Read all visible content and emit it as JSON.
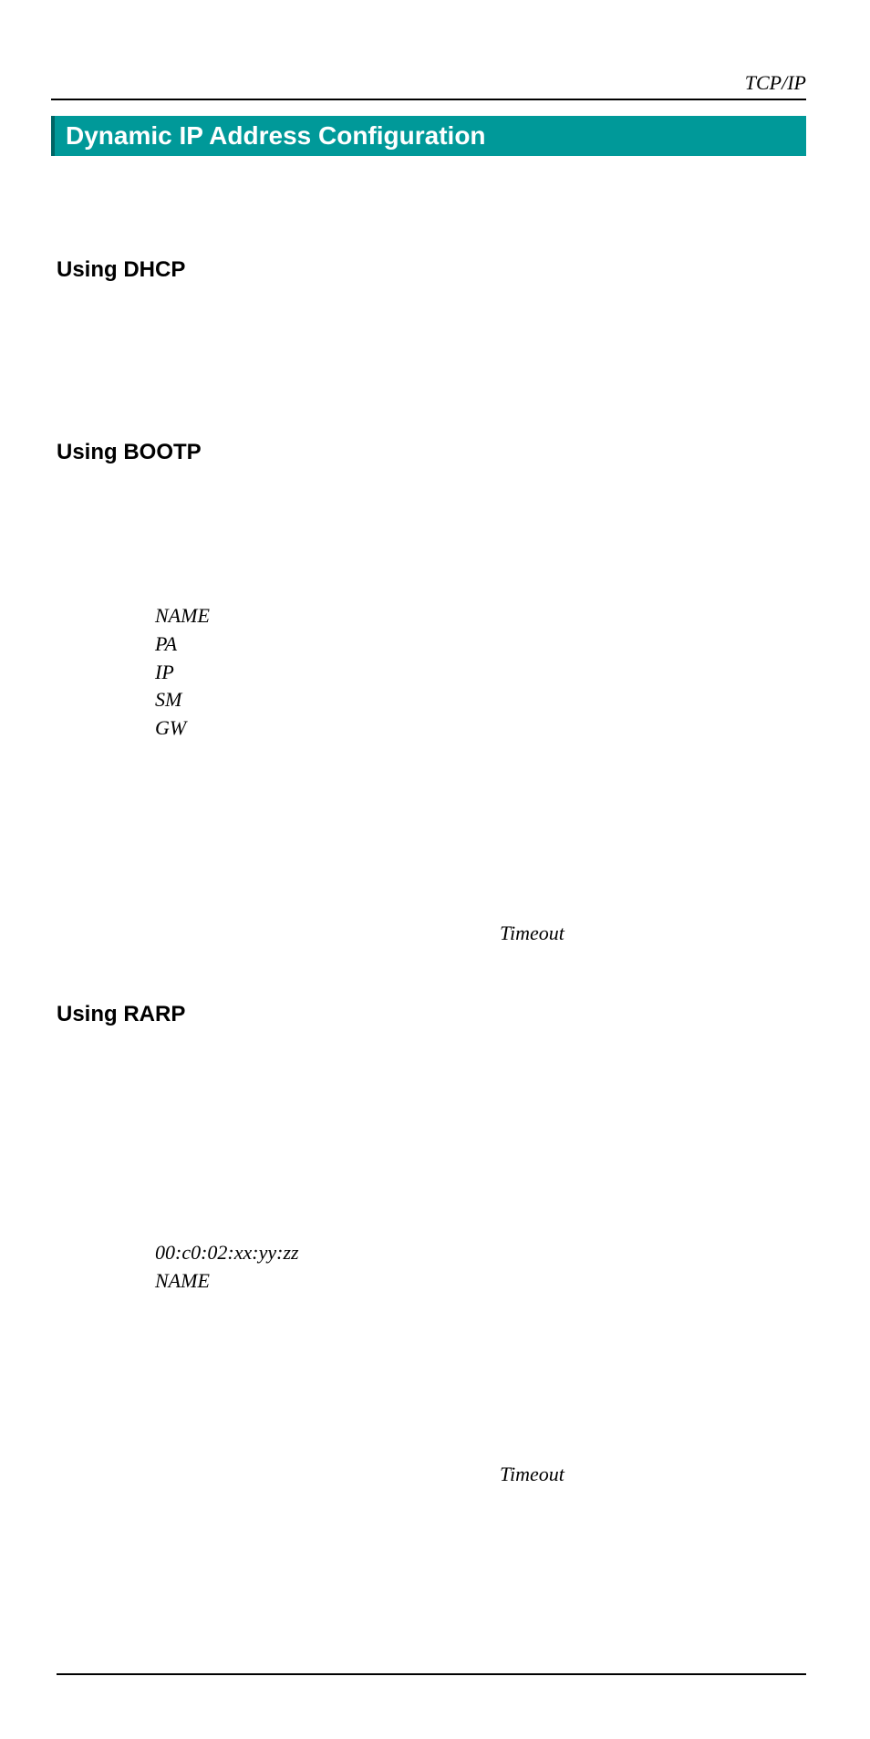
{
  "header": {
    "right_label": "TCP/IP"
  },
  "banner": {
    "title": "Dynamic IP Address Configuration",
    "background_color": "#009999",
    "text_color": "#ffffff"
  },
  "sections": {
    "dhcp": {
      "heading": "Using DHCP"
    },
    "bootp": {
      "heading": "Using BOOTP",
      "items": [
        "NAME",
        "PA",
        "IP",
        "SM",
        "GW"
      ],
      "timeout_label": "Timeout"
    },
    "rarp": {
      "heading": "Using RARP",
      "items": [
        "00:c0:02:xx:yy:zz",
        "NAME"
      ],
      "timeout_label": "Timeout"
    }
  },
  "typography": {
    "heading_font": "Arial",
    "heading_weight": "bold",
    "heading_size_pt": 18,
    "body_font": "Times New Roman",
    "italic_size_pt": 17
  },
  "colors": {
    "text": "#000000",
    "rule": "#000000",
    "background": "#ffffff",
    "banner_bg": "#009999",
    "banner_border": "#006666"
  }
}
